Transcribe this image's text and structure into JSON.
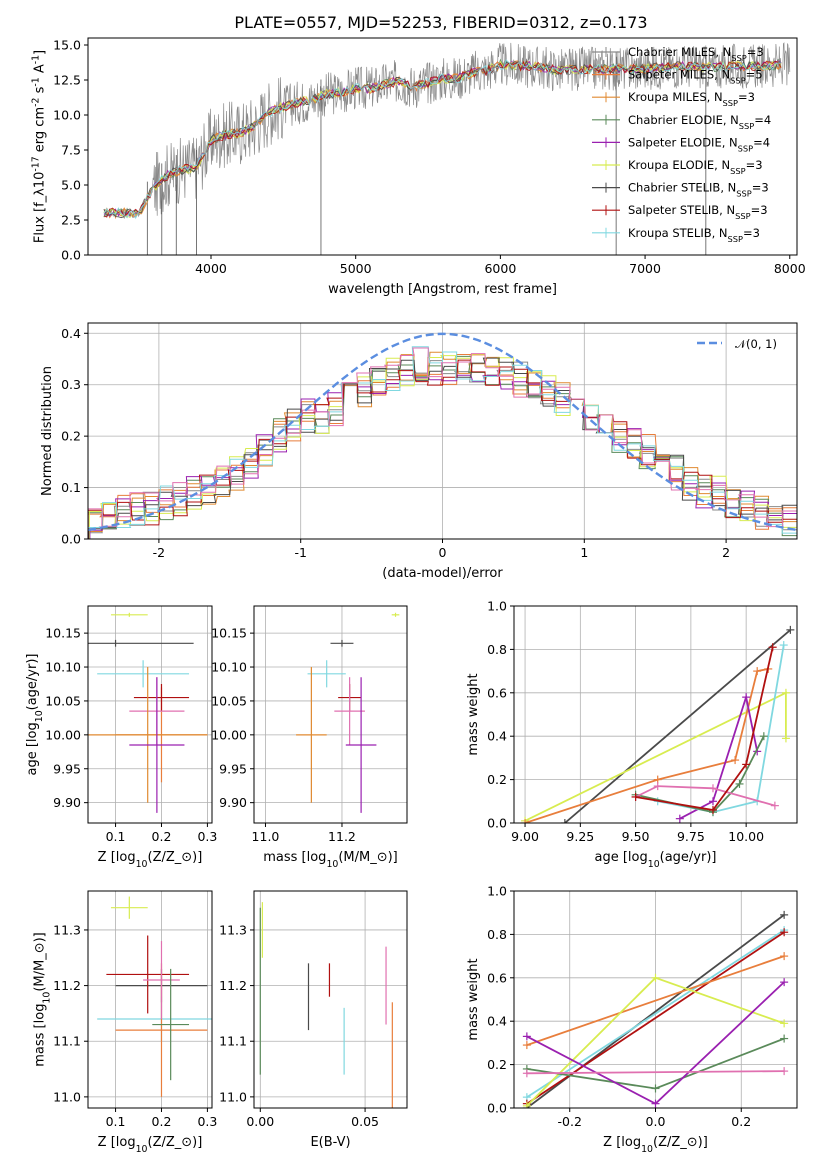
{
  "title": "PLATE=0557, MJD=52253, FIBERID=0312, z=0.173",
  "colors": {
    "chabrier_miles": "#8a8a8a",
    "salpeter_miles": "#e87e3c",
    "kroupa_miles": "#e08a30",
    "chabrier_elodie": "#5a8a5a",
    "salpeter_elodie": "#9a20b0",
    "kroupa_elodie": "#d8ec50",
    "chabrier_stelib": "#4a4a4a",
    "salpeter_stelib": "#b01010",
    "kroupa_stelib": "#80d8e0",
    "pink": "#e070b0",
    "gauss": "#5b8ee0"
  },
  "legend": [
    "Chabrier MILES, N_{SSP}=3",
    "Salpeter MILES, N_{SSP}=5",
    "Kroupa MILES, N_{SSP}=3",
    "Chabrier ELODIE, N_{SSP}=4",
    "Salpeter ELODIE, N_{SSP}=4",
    "Kroupa ELODIE, N_{SSP}=3",
    "Chabrier STELIB, N_{SSP}=3",
    "Salpeter STELIB, N_{SSP}=3",
    "Kroupa STELIB, N_{SSP}=3"
  ],
  "chart_data": [
    {
      "type": "line",
      "panel": "spectrum",
      "xlabel": "wavelength [Angstrom, rest frame]",
      "ylabel": "Flux [f_λ10^{-17} erg cm^{-2} s^{-1} A^{-1}]",
      "xlim": [
        3150,
        8050
      ],
      "ylim": [
        0,
        15.5
      ],
      "xticks": [
        4000,
        5000,
        6000,
        7000,
        8000
      ],
      "yticks": [
        0.0,
        2.5,
        5.0,
        7.5,
        10.0,
        12.5,
        15.0
      ],
      "x": [
        3280,
        3400,
        3500,
        3600,
        3700,
        3800,
        3900,
        4000,
        4100,
        4200,
        4300,
        4400,
        4500,
        4600,
        4700,
        4800,
        4900,
        5000,
        5100,
        5200,
        5300,
        5400,
        5500,
        5600,
        5700,
        5800,
        5900,
        6000,
        6200,
        6400,
        6600,
        6800,
        7000,
        7200,
        7400,
        7600,
        7800,
        7950
      ],
      "y": [
        3.0,
        3.0,
        2.9,
        4.8,
        5.7,
        6.1,
        6.3,
        8.2,
        8.6,
        8.7,
        9.2,
        10.2,
        10.6,
        10.9,
        11.1,
        11.5,
        11.6,
        11.9,
        11.9,
        12.2,
        12.4,
        12.0,
        12.3,
        12.6,
        12.6,
        13.0,
        13.2,
        13.6,
        13.5,
        13.2,
        13.3,
        13.3,
        13.3,
        13.5,
        13.4,
        13.5,
        13.5,
        13.6
      ],
      "grid": false,
      "legend_position": "upper right"
    },
    {
      "type": "line",
      "panel": "residual_histogram",
      "xlabel": "(data-model)/error",
      "ylabel": "Normed distribution",
      "xlim": [
        -2.5,
        2.5
      ],
      "ylim": [
        0,
        0.42
      ],
      "xticks": [
        -2,
        -1,
        0,
        1,
        2
      ],
      "yticks": [
        0.0,
        0.1,
        0.2,
        0.3,
        0.4
      ],
      "series_label": "𝒩(0, 1)",
      "x": [
        -2.5,
        -2.4,
        -2.3,
        -2.2,
        -2.1,
        -2.0,
        -1.9,
        -1.8,
        -1.7,
        -1.6,
        -1.5,
        -1.4,
        -1.3,
        -1.2,
        -1.1,
        -1.0,
        -0.9,
        -0.8,
        -0.7,
        -0.6,
        -0.5,
        -0.4,
        -0.3,
        -0.2,
        -0.1,
        0.0,
        0.1,
        0.2,
        0.3,
        0.4,
        0.5,
        0.6,
        0.7,
        0.8,
        0.9,
        1.0,
        1.1,
        1.2,
        1.3,
        1.4,
        1.5,
        1.6,
        1.7,
        1.8,
        1.9,
        2.0,
        2.1,
        2.2,
        2.3,
        2.4
      ],
      "y": [
        0.035,
        0.04,
        0.05,
        0.055,
        0.06,
        0.07,
        0.08,
        0.09,
        0.1,
        0.11,
        0.13,
        0.15,
        0.17,
        0.2,
        0.22,
        0.24,
        0.24,
        0.25,
        0.27,
        0.29,
        0.31,
        0.32,
        0.33,
        0.34,
        0.33,
        0.33,
        0.33,
        0.33,
        0.32,
        0.32,
        0.31,
        0.3,
        0.29,
        0.27,
        0.26,
        0.23,
        0.22,
        0.2,
        0.18,
        0.17,
        0.15,
        0.13,
        0.11,
        0.09,
        0.09,
        0.07,
        0.06,
        0.05,
        0.04,
        0.04
      ],
      "grid": true,
      "legend_position": "upper right"
    },
    {
      "type": "scatter",
      "panel": "age_vs_Z",
      "xlabel": "Z [log_{10}(Z/Z_⊙)]",
      "ylabel": "age  [log_{10}(age/yr)]",
      "xlim": [
        0.04,
        0.31
      ],
      "ylim": [
        9.87,
        10.19
      ],
      "xticks": [
        0.1,
        0.2,
        0.3
      ],
      "yticks": [
        9.9,
        9.95,
        10.0,
        10.05,
        10.1,
        10.15
      ],
      "points": [
        {
          "x": 0.1,
          "y": 10.135,
          "xerr": 0.17,
          "yerr": 0.005,
          "color": "chabrier_stelib"
        },
        {
          "x": 0.2,
          "y": 10.0,
          "xerr": 0.1,
          "yerr": 0.07,
          "color": "salpeter_miles"
        },
        {
          "x": 0.16,
          "y": 10.09,
          "xerr": 0.1,
          "yerr": 0.02,
          "color": "kroupa_stelib"
        },
        {
          "x": 0.2,
          "y": 10.055,
          "xerr": 0.06,
          "yerr": 0.02,
          "color": "salpeter_stelib"
        },
        {
          "x": 0.19,
          "y": 10.035,
          "xerr": 0.06,
          "yerr": 0.05,
          "color": "pink"
        },
        {
          "x": 0.17,
          "y": 10.0,
          "xerr": 0.13,
          "yerr": 0.1,
          "color": "kroupa_miles"
        },
        {
          "x": 0.19,
          "y": 9.985,
          "xerr": 0.06,
          "yerr": 0.1,
          "color": "salpeter_elodie"
        },
        {
          "x": 0.13,
          "y": 10.177,
          "xerr": 0.04,
          "yerr": 0.003,
          "color": "kroupa_elodie"
        }
      ],
      "grid": true
    },
    {
      "type": "scatter",
      "panel": "age_vs_mass",
      "xlabel": "mass [log_{10}(M/M_⊙)]",
      "ylabel": "",
      "xlim": [
        10.97,
        11.37
      ],
      "ylim": [
        9.87,
        10.19
      ],
      "xticks": [
        11.0,
        11.2
      ],
      "yticks": [
        9.9,
        9.95,
        10.0,
        10.05,
        10.1,
        10.15
      ],
      "points": [
        {
          "x": 11.2,
          "y": 10.135,
          "xerr": 0.03,
          "yerr": 0.005,
          "color": "chabrier_stelib"
        },
        {
          "x": 11.16,
          "y": 10.09,
          "xerr": 0.05,
          "yerr": 0.02,
          "color": "kroupa_stelib"
        },
        {
          "x": 11.22,
          "y": 10.055,
          "xerr": 0.03,
          "yerr": 0.02,
          "color": "salpeter_stelib"
        },
        {
          "x": 11.22,
          "y": 10.035,
          "xerr": 0.04,
          "yerr": 0.05,
          "color": "pink"
        },
        {
          "x": 11.12,
          "y": 10.0,
          "xerr": 0.04,
          "yerr": 0.1,
          "color": "kroupa_miles"
        },
        {
          "x": 11.25,
          "y": 9.985,
          "xerr": 0.04,
          "yerr": 0.1,
          "color": "salpeter_elodie"
        },
        {
          "x": 11.34,
          "y": 10.177,
          "xerr": 0.01,
          "yerr": 0.003,
          "color": "kroupa_elodie"
        }
      ],
      "grid": true
    },
    {
      "type": "line",
      "panel": "mass_weight_vs_age",
      "xlabel": "age  [log_{10}(age/yr)]",
      "ylabel": "mass weight",
      "xlim": [
        8.95,
        10.23
      ],
      "ylim": [
        0,
        1.0
      ],
      "xticks": [
        9.0,
        9.25,
        9.5,
        9.75,
        10.0
      ],
      "yticks": [
        0.0,
        0.2,
        0.4,
        0.6,
        0.8,
        1.0
      ],
      "series": [
        {
          "color": "chabrier_stelib",
          "x": [
            9.18,
            10.2
          ],
          "y": [
            0.0,
            0.89
          ]
        },
        {
          "color": "kroupa_elodie",
          "x": [
            9.0,
            10.18,
            10.18
          ],
          "y": [
            0.01,
            0.6,
            0.39
          ]
        },
        {
          "color": "salpeter_miles",
          "x": [
            9.0,
            9.6,
            9.95,
            10.05,
            10.1
          ],
          "y": [
            0.0,
            0.2,
            0.29,
            0.7,
            0.71
          ]
        },
        {
          "color": "salpeter_elodie",
          "x": [
            9.7,
            9.85,
            10.0,
            10.05
          ],
          "y": [
            0.02,
            0.1,
            0.58,
            0.33
          ]
        },
        {
          "color": "kroupa_stelib",
          "x": [
            9.6,
            9.85,
            10.05,
            10.17
          ],
          "y": [
            0.1,
            0.05,
            0.1,
            0.82
          ]
        },
        {
          "color": "chabrier_elodie",
          "x": [
            9.5,
            9.85,
            9.97,
            10.08
          ],
          "y": [
            0.13,
            0.05,
            0.18,
            0.4
          ]
        },
        {
          "color": "pink",
          "x": [
            9.5,
            9.6,
            9.85,
            10.13
          ],
          "y": [
            0.12,
            0.17,
            0.16,
            0.08
          ]
        },
        {
          "color": "salpeter_stelib",
          "x": [
            9.5,
            9.85,
            10.0,
            10.12
          ],
          "y": [
            0.12,
            0.06,
            0.27,
            0.81
          ]
        }
      ],
      "grid": true
    },
    {
      "type": "scatter",
      "panel": "mass_vs_Z",
      "xlabel": "Z [log_{10}(Z/Z_⊙)]",
      "ylabel": "mass [log_{10}(M/M_⊙)]",
      "xlim": [
        0.04,
        0.31
      ],
      "ylim": [
        10.98,
        11.37
      ],
      "xticks": [
        0.1,
        0.2,
        0.3
      ],
      "yticks": [
        11.0,
        11.1,
        11.2,
        11.3
      ],
      "points": [
        {
          "x": 0.13,
          "y": 11.34,
          "xerr": 0.04,
          "yerr": 0.02,
          "color": "kroupa_elodie"
        },
        {
          "x": 0.2,
          "y": 11.2,
          "xerr": 0.1,
          "yerr": 0.03,
          "color": "chabrier_stelib"
        },
        {
          "x": 0.17,
          "y": 11.22,
          "xerr": 0.09,
          "yerr": 0.07,
          "color": "salpeter_stelib"
        },
        {
          "x": 0.2,
          "y": 11.14,
          "xerr": 0.14,
          "yerr": 0.04,
          "color": "kroupa_stelib"
        },
        {
          "x": 0.2,
          "y": 11.12,
          "xerr": 0.1,
          "yerr": 0.12,
          "color": "salpeter_miles"
        },
        {
          "x": 0.2,
          "y": 11.21,
          "xerr": 0.04,
          "yerr": 0.07,
          "color": "pink"
        },
        {
          "x": 0.22,
          "y": 11.13,
          "xerr": 0.04,
          "yerr": 0.1,
          "color": "chabrier_elodie"
        }
      ],
      "grid": true
    },
    {
      "type": "scatter",
      "panel": "mass_vs_ebv",
      "xlabel": "E(B-V)",
      "ylabel": "",
      "xlim": [
        -0.003,
        0.07
      ],
      "ylim": [
        10.98,
        11.37
      ],
      "xticks": [
        0.0,
        0.05
      ],
      "yticks": [
        11.0,
        11.1,
        11.2,
        11.3
      ],
      "points": [
        {
          "x": 0.0,
          "y": 11.19,
          "yerr": 0.15,
          "color": "chabrier_elodie"
        },
        {
          "x": 0.001,
          "y": 11.3,
          "yerr": 0.05,
          "color": "kroupa_elodie"
        },
        {
          "x": 0.023,
          "y": 11.18,
          "yerr": 0.06,
          "color": "chabrier_stelib"
        },
        {
          "x": 0.033,
          "y": 11.21,
          "yerr": 0.03,
          "color": "salpeter_stelib"
        },
        {
          "x": 0.04,
          "y": 11.1,
          "yerr": 0.06,
          "color": "kroupa_stelib"
        },
        {
          "x": 0.06,
          "y": 11.2,
          "yerr": 0.07,
          "color": "pink"
        },
        {
          "x": 0.063,
          "y": 11.07,
          "yerr": 0.1,
          "color": "salpeter_miles"
        }
      ],
      "grid": true
    },
    {
      "type": "line",
      "panel": "mass_weight_vs_Z",
      "xlabel": "Z [log_{10}(Z/Z_⊙)]",
      "ylabel": "mass weight",
      "xlim": [
        -0.33,
        0.33
      ],
      "ylim": [
        0,
        1.0
      ],
      "xticks": [
        -0.2,
        0.0,
        0.2
      ],
      "yticks": [
        0.0,
        0.2,
        0.4,
        0.6,
        0.8,
        1.0
      ],
      "series": [
        {
          "color": "chabrier_stelib",
          "x": [
            -0.3,
            0.3
          ],
          "y": [
            0.0,
            0.89
          ]
        },
        {
          "color": "kroupa_stelib",
          "x": [
            -0.3,
            0.3
          ],
          "y": [
            0.05,
            0.82
          ]
        },
        {
          "color": "salpeter_stelib",
          "x": [
            -0.3,
            0.3
          ],
          "y": [
            0.02,
            0.81
          ]
        },
        {
          "color": "salpeter_miles",
          "x": [
            -0.3,
            0.3
          ],
          "y": [
            0.29,
            0.7
          ]
        },
        {
          "color": "kroupa_elodie",
          "x": [
            -0.3,
            0.0,
            0.3
          ],
          "y": [
            0.01,
            0.6,
            0.39
          ]
        },
        {
          "color": "chabrier_elodie",
          "x": [
            -0.3,
            0.0,
            0.3
          ],
          "y": [
            0.18,
            0.09,
            0.32
          ]
        },
        {
          "color": "salpeter_elodie",
          "x": [
            -0.3,
            0.0,
            0.3
          ],
          "y": [
            0.33,
            0.02,
            0.58
          ]
        },
        {
          "color": "pink",
          "x": [
            -0.3,
            0.3
          ],
          "y": [
            0.16,
            0.17
          ]
        }
      ],
      "grid": true
    }
  ]
}
